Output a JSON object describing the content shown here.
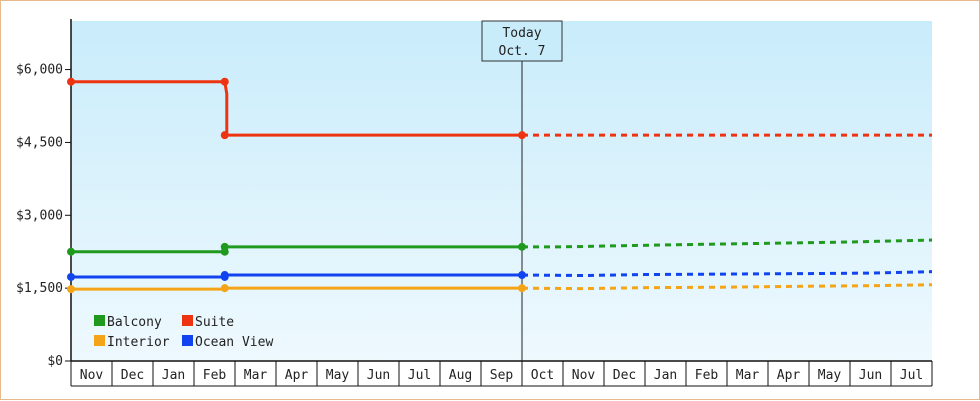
{
  "chart_data": {
    "type": "line",
    "title": "",
    "xlabel": "",
    "ylabel": "",
    "ylim": [
      0,
      7000
    ],
    "yticks": [
      0,
      1500,
      3000,
      4500,
      6000
    ],
    "ytick_labels": [
      "$0",
      "$1,500",
      "$3,000",
      "$4,500",
      "$6,000"
    ],
    "xlim": [
      0,
      21
    ],
    "x_categories": [
      "Nov",
      "Dec",
      "Jan",
      "Feb",
      "Mar",
      "Apr",
      "May",
      "Jun",
      "Jul",
      "Aug",
      "Sep",
      "Oct",
      "Nov",
      "Dec",
      "Jan",
      "Feb",
      "Mar",
      "Apr",
      "May",
      "Jun",
      "Jul"
    ],
    "grid": false,
    "legend_position": "bottom-left",
    "today_marker": {
      "x": 11.0,
      "label_line1": "Today",
      "label_line2": "Oct. 7"
    },
    "series": [
      {
        "name": "Balcony",
        "color": "#1f9a1f",
        "historical": [
          [
            0,
            2250
          ],
          [
            3.75,
            2250
          ],
          [
            3.75,
            2350
          ],
          [
            11.0,
            2350
          ]
        ],
        "markers": [
          [
            0,
            2250
          ],
          [
            3.75,
            2250
          ],
          [
            3.75,
            2350
          ],
          [
            11.0,
            2350
          ]
        ],
        "forecast": [
          [
            11.0,
            2350
          ],
          [
            12,
            2350
          ],
          [
            13.2,
            2370
          ],
          [
            14.5,
            2390
          ],
          [
            16,
            2410
          ],
          [
            17.5,
            2430
          ],
          [
            19,
            2450
          ],
          [
            21,
            2490
          ]
        ]
      },
      {
        "name": "Suite",
        "color": "#ee3311",
        "historical": [
          [
            0,
            5750
          ],
          [
            3.75,
            5750
          ],
          [
            3.8,
            5500
          ],
          [
            3.8,
            4650
          ],
          [
            11.0,
            4650
          ]
        ],
        "markers": [
          [
            0,
            5750
          ],
          [
            3.75,
            5750
          ],
          [
            3.75,
            4650
          ],
          [
            11.0,
            4650
          ]
        ],
        "forecast": [
          [
            11.0,
            4650
          ],
          [
            21,
            4650
          ]
        ]
      },
      {
        "name": "Interior",
        "color": "#f5a418",
        "historical": [
          [
            0,
            1480
          ],
          [
            3.75,
            1480
          ],
          [
            3.75,
            1500
          ],
          [
            11.0,
            1500
          ]
        ],
        "markers": [
          [
            0,
            1480
          ],
          [
            3.75,
            1500
          ],
          [
            11.0,
            1500
          ]
        ],
        "forecast": [
          [
            11.0,
            1500
          ],
          [
            12.5,
            1490
          ],
          [
            14,
            1510
          ],
          [
            16,
            1520
          ],
          [
            18,
            1540
          ],
          [
            19.5,
            1550
          ],
          [
            21,
            1570
          ]
        ]
      },
      {
        "name": "Ocean View",
        "color": "#1144ee",
        "historical": [
          [
            0,
            1730
          ],
          [
            3.75,
            1730
          ],
          [
            3.75,
            1770
          ],
          [
            11.0,
            1770
          ]
        ],
        "markers": [
          [
            0,
            1730
          ],
          [
            3.75,
            1730
          ],
          [
            3.75,
            1770
          ],
          [
            11.0,
            1770
          ]
        ],
        "forecast": [
          [
            11.0,
            1770
          ],
          [
            12.5,
            1760
          ],
          [
            14,
            1780
          ],
          [
            16,
            1790
          ],
          [
            18,
            1800
          ],
          [
            19.5,
            1810
          ],
          [
            21,
            1840
          ]
        ]
      }
    ],
    "legend_order": [
      "Balcony",
      "Suite",
      "Interior",
      "Ocean View"
    ]
  }
}
